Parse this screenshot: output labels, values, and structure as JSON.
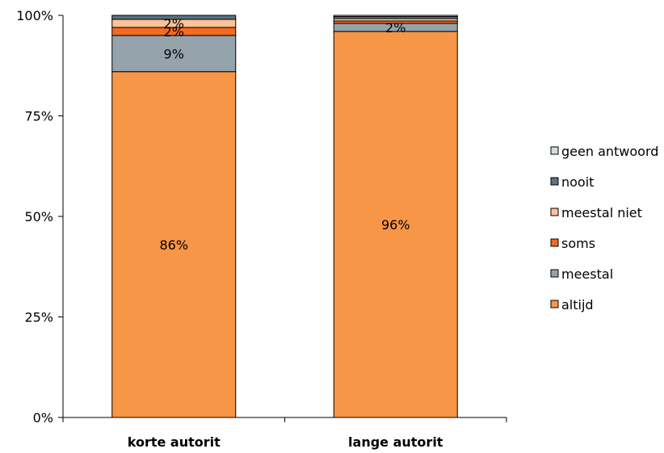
{
  "chart_data": {
    "type": "bar",
    "stacked": true,
    "categories": [
      "korte autorit",
      "lange autorit"
    ],
    "series": [
      {
        "name": "altijd",
        "color": "#f79646",
        "values": [
          86,
          96
        ],
        "labels": [
          "86%",
          "96%"
        ]
      },
      {
        "name": "meestal",
        "color": "#95a3ad",
        "values": [
          9,
          2
        ],
        "labels": [
          "9%",
          "2%"
        ]
      },
      {
        "name": "soms",
        "color": "#f26b20",
        "values": [
          2,
          0.6
        ],
        "labels": [
          "2%",
          ""
        ]
      },
      {
        "name": "meestal niet",
        "color": "#fbc29b",
        "values": [
          2,
          0.6
        ],
        "labels": [
          "2%",
          ""
        ]
      },
      {
        "name": "nooit",
        "color": "#5b7280",
        "values": [
          1,
          0.5
        ],
        "labels": [
          "",
          ""
        ]
      },
      {
        "name": "geen antwoord",
        "color": "#d4dde1",
        "values": [
          0,
          0.3
        ],
        "labels": [
          "",
          ""
        ]
      }
    ],
    "ylim": [
      0,
      100
    ],
    "yticks": [
      "0%",
      "25%",
      "50%",
      "75%",
      "100%"
    ],
    "legend_position": "right",
    "grid": false
  }
}
